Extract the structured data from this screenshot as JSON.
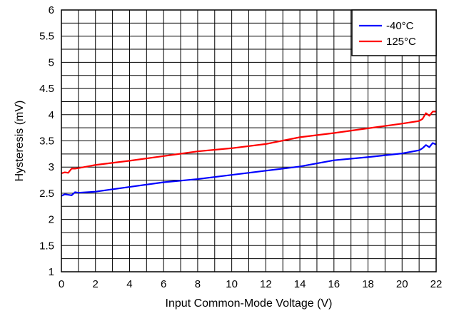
{
  "chart_data": {
    "type": "line",
    "xlabel": "Input Common-Mode Voltage (V)",
    "ylabel": "Hysteresis (mV)",
    "xlim": [
      0,
      22
    ],
    "ylim": [
      1,
      6
    ],
    "x_ticks": [
      0,
      2,
      4,
      6,
      8,
      10,
      12,
      14,
      16,
      18,
      20,
      22
    ],
    "y_ticks": [
      1,
      1.5,
      2,
      2.5,
      3,
      3.5,
      4,
      4.5,
      5,
      5.5,
      6
    ],
    "x_tick_labels": [
      "0",
      "2",
      "4",
      "6",
      "8",
      "10",
      "12",
      "14",
      "16",
      "18",
      "20",
      "22"
    ],
    "y_tick_labels": [
      "1",
      "1.5",
      "2",
      "2.5",
      "3",
      "3.5",
      "4",
      "4.5",
      "5",
      "5.5",
      "6"
    ],
    "grid": true,
    "legend_position": "top-right",
    "series": [
      {
        "name": "-40°C",
        "color": "#0000ff",
        "x": [
          0,
          0.2,
          0.4,
          0.6,
          0.8,
          1.0,
          2,
          4,
          6,
          8,
          10,
          12,
          14,
          16,
          18,
          20,
          21,
          21.2,
          21.4,
          21.6,
          21.8,
          22
        ],
        "y": [
          2.45,
          2.48,
          2.47,
          2.46,
          2.52,
          2.51,
          2.53,
          2.62,
          2.71,
          2.77,
          2.85,
          2.93,
          3.01,
          3.13,
          3.19,
          3.26,
          3.32,
          3.36,
          3.42,
          3.38,
          3.46,
          3.43
        ]
      },
      {
        "name": "125°C",
        "color": "#ff0000",
        "x": [
          0,
          0.2,
          0.4,
          0.6,
          0.8,
          1.0,
          2,
          4,
          6,
          8,
          10,
          12,
          14,
          16,
          18,
          20,
          21,
          21.2,
          21.4,
          21.6,
          21.8,
          22
        ],
        "y": [
          2.88,
          2.9,
          2.89,
          2.97,
          2.97,
          2.98,
          3.04,
          3.12,
          3.21,
          3.3,
          3.36,
          3.44,
          3.57,
          3.65,
          3.74,
          3.83,
          3.88,
          3.92,
          4.03,
          3.98,
          4.06,
          4.06
        ]
      }
    ]
  }
}
